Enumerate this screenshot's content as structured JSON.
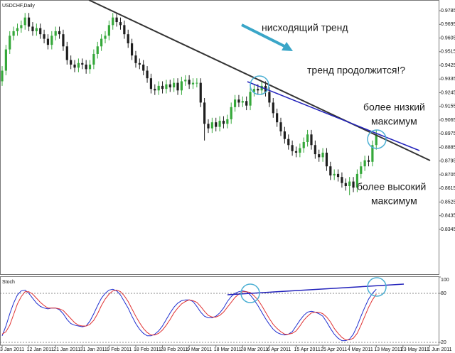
{
  "chart_data": [
    {
      "type": "candlestick",
      "title": "USDCHF,Daily",
      "xlim": [
        -0.56,
        114.34
      ],
      "ylim": [
        0.805,
        0.9846
      ],
      "yticks": [
        0.9785,
        0.9695,
        0.9605,
        0.9515,
        0.9425,
        0.9335,
        0.9245,
        0.9155,
        0.9065,
        0.8975,
        0.8885,
        0.8795,
        0.8705,
        0.8615,
        0.8525,
        0.8435,
        0.8345
      ],
      "up_color": "#35a83a",
      "down_color": "#1e1e1e",
      "open": [
        0.932,
        0.939,
        0.953,
        0.962,
        0.965,
        0.967,
        0.969,
        0.974,
        0.968,
        0.965,
        0.967,
        0.963,
        0.96,
        0.956,
        0.962,
        0.965,
        0.963,
        0.955,
        0.946,
        0.943,
        0.941,
        0.944,
        0.943,
        0.94,
        0.943,
        0.95,
        0.955,
        0.96,
        0.962,
        0.969,
        0.974,
        0.971,
        0.969,
        0.963,
        0.957,
        0.949,
        0.944,
        0.943,
        0.939,
        0.934,
        0.927,
        0.926,
        0.929,
        0.927,
        0.93,
        0.928,
        0.931,
        0.926,
        0.932,
        0.933,
        0.93,
        0.931,
        0.931,
        0.918,
        0.904,
        0.901,
        0.905,
        0.902,
        0.906,
        0.904,
        0.907,
        0.915,
        0.92,
        0.918,
        0.919,
        0.916,
        0.925,
        0.927,
        0.926,
        0.929,
        0.925,
        0.918,
        0.911,
        0.905,
        0.899,
        0.894,
        0.89,
        0.886,
        0.885,
        0.888,
        0.892,
        0.897,
        0.89,
        0.884,
        0.882,
        0.885,
        0.876,
        0.87,
        0.871,
        0.869,
        0.865,
        0.863,
        0.866,
        0.862,
        0.871,
        0.876,
        0.88,
        0.879,
        0.89
      ],
      "high": [
        0.942,
        0.956,
        0.965,
        0.968,
        0.97,
        0.972,
        0.977,
        0.977,
        0.971,
        0.97,
        0.97,
        0.966,
        0.963,
        0.965,
        0.968,
        0.968,
        0.966,
        0.958,
        0.949,
        0.946,
        0.947,
        0.947,
        0.946,
        0.946,
        0.953,
        0.958,
        0.963,
        0.965,
        0.972,
        0.977,
        0.977,
        0.974,
        0.972,
        0.966,
        0.96,
        0.952,
        0.947,
        0.946,
        0.942,
        0.937,
        0.93,
        0.932,
        0.932,
        0.933,
        0.933,
        0.934,
        0.934,
        0.935,
        0.936,
        0.936,
        0.934,
        0.934,
        0.934,
        0.921,
        0.907,
        0.908,
        0.908,
        0.909,
        0.909,
        0.91,
        0.918,
        0.923,
        0.923,
        0.922,
        0.922,
        0.928,
        0.93,
        0.93,
        0.932,
        0.932,
        0.928,
        0.921,
        0.914,
        0.908,
        0.902,
        0.897,
        0.893,
        0.889,
        0.891,
        0.895,
        0.9,
        0.9,
        0.893,
        0.887,
        0.888,
        0.888,
        0.879,
        0.874,
        0.874,
        0.872,
        0.868,
        0.869,
        0.869,
        0.874,
        0.879,
        0.883,
        0.883,
        0.893,
        0.9
      ],
      "low": [
        0.929,
        0.936,
        0.95,
        0.959,
        0.962,
        0.964,
        0.966,
        0.965,
        0.962,
        0.962,
        0.96,
        0.957,
        0.953,
        0.953,
        0.959,
        0.96,
        0.952,
        0.943,
        0.94,
        0.938,
        0.938,
        0.94,
        0.937,
        0.937,
        0.94,
        0.947,
        0.952,
        0.957,
        0.959,
        0.966,
        0.968,
        0.966,
        0.96,
        0.954,
        0.946,
        0.941,
        0.94,
        0.936,
        0.931,
        0.924,
        0.923,
        0.923,
        0.924,
        0.924,
        0.925,
        0.925,
        0.923,
        0.923,
        0.929,
        0.927,
        0.927,
        0.928,
        0.915,
        0.893,
        0.898,
        0.898,
        0.899,
        0.899,
        0.901,
        0.901,
        0.904,
        0.912,
        0.915,
        0.915,
        0.913,
        0.913,
        0.922,
        0.923,
        0.923,
        0.922,
        0.915,
        0.908,
        0.902,
        0.896,
        0.891,
        0.887,
        0.883,
        0.882,
        0.882,
        0.885,
        0.889,
        0.887,
        0.881,
        0.879,
        0.879,
        0.873,
        0.867,
        0.867,
        0.866,
        0.862,
        0.86,
        0.857,
        0.859,
        0.859,
        0.868,
        0.873,
        0.876,
        0.876,
        0.887
      ],
      "close": [
        0.939,
        0.953,
        0.962,
        0.965,
        0.967,
        0.969,
        0.974,
        0.968,
        0.965,
        0.967,
        0.963,
        0.96,
        0.956,
        0.962,
        0.965,
        0.963,
        0.955,
        0.946,
        0.943,
        0.941,
        0.944,
        0.943,
        0.94,
        0.943,
        0.95,
        0.955,
        0.96,
        0.962,
        0.969,
        0.974,
        0.971,
        0.969,
        0.963,
        0.957,
        0.949,
        0.944,
        0.943,
        0.939,
        0.934,
        0.927,
        0.926,
        0.929,
        0.927,
        0.93,
        0.928,
        0.931,
        0.926,
        0.932,
        0.933,
        0.93,
        0.931,
        0.931,
        0.918,
        0.904,
        0.901,
        0.905,
        0.902,
        0.906,
        0.904,
        0.907,
        0.915,
        0.92,
        0.918,
        0.919,
        0.916,
        0.925,
        0.927,
        0.926,
        0.929,
        0.925,
        0.918,
        0.911,
        0.905,
        0.899,
        0.894,
        0.89,
        0.886,
        0.885,
        0.888,
        0.892,
        0.897,
        0.89,
        0.884,
        0.882,
        0.885,
        0.876,
        0.87,
        0.871,
        0.869,
        0.865,
        0.863,
        0.866,
        0.862,
        0.871,
        0.876,
        0.88,
        0.879,
        0.89,
        0.897
      ],
      "annotations": [
        "нисходящий тренд",
        "тренд продолжится!?",
        "более низкий",
        "максимум",
        "более высокий",
        "максимум"
      ]
    },
    {
      "type": "line",
      "title": "Stoch",
      "xlim": [
        -0.56,
        114.34
      ],
      "ylim": [
        16.5,
        100
      ],
      "yticks": [
        20,
        80,
        100
      ],
      "xticks": [
        {
          "value": 0,
          "label": "3 Jan 2011"
        },
        {
          "value": 7,
          "label": "12 Jan 2011"
        },
        {
          "value": 14,
          "label": "21 Jan 2011"
        },
        {
          "value": 21,
          "label": "31 Jan 2011"
        },
        {
          "value": 28,
          "label": "9 Feb 2011"
        },
        {
          "value": 35,
          "label": "18 Feb 2011"
        },
        {
          "value": 42,
          "label": "28 Feb 2011"
        },
        {
          "value": 49,
          "label": "9 Mar 2011"
        },
        {
          "value": 56,
          "label": "18 Mar 2011"
        },
        {
          "value": 63,
          "label": "28 Mar 2011"
        },
        {
          "value": 70,
          "label": "6 Apr 2011"
        },
        {
          "value": 77,
          "label": "15 Apr 2011"
        },
        {
          "value": 84,
          "label": "25 Apr 2011"
        },
        {
          "value": 91,
          "label": "4 May 2011"
        },
        {
          "value": 98,
          "label": "13 May 2011"
        },
        {
          "value": 105,
          "label": "23 May 2011"
        },
        {
          "value": 112,
          "label": "1 Jun 2011"
        }
      ],
      "series": [
        {
          "color": "#1f2fd0",
          "values": [
            28,
            40,
            55,
            68,
            78,
            83,
            84,
            80,
            74,
            68,
            64,
            62,
            61,
            62,
            62,
            60,
            55,
            48,
            43,
            41,
            40,
            39,
            40,
            46,
            55,
            65,
            74,
            80,
            84,
            85,
            83,
            78,
            70,
            62,
            52,
            43,
            36,
            31,
            28,
            28,
            30,
            34,
            40,
            48,
            56,
            63,
            68,
            71,
            72,
            72,
            70,
            64,
            57,
            52,
            50,
            50,
            52,
            56,
            62,
            70,
            76,
            80,
            82,
            83,
            82,
            78,
            72,
            65,
            57,
            49,
            42,
            36,
            32,
            30,
            29,
            30,
            33,
            40,
            47,
            53,
            57,
            58,
            57,
            55,
            52,
            45,
            37,
            30,
            25,
            22,
            22,
            24,
            30,
            40,
            52,
            63,
            73,
            80,
            85
          ]
        },
        {
          "color": "#e03232",
          "values": [
            30,
            33,
            41,
            54,
            67,
            76,
            82,
            82,
            79,
            74,
            69,
            65,
            62,
            62,
            62,
            61,
            59,
            54,
            49,
            44,
            41,
            40,
            40,
            42,
            47,
            55,
            65,
            73,
            79,
            83,
            84,
            82,
            77,
            70,
            61,
            52,
            44,
            37,
            32,
            29,
            29,
            31,
            35,
            41,
            48,
            56,
            62,
            67,
            70,
            72,
            71,
            69,
            64,
            58,
            53,
            51,
            51,
            53,
            57,
            63,
            69,
            75,
            79,
            82,
            82,
            81,
            77,
            72,
            65,
            57,
            49,
            42,
            37,
            33,
            30,
            30,
            31,
            34,
            40,
            47,
            52,
            56,
            57,
            57,
            55,
            51,
            45,
            37,
            31,
            26,
            23,
            23,
            25,
            31,
            41,
            52,
            63,
            72,
            79
          ]
        }
      ]
    }
  ]
}
